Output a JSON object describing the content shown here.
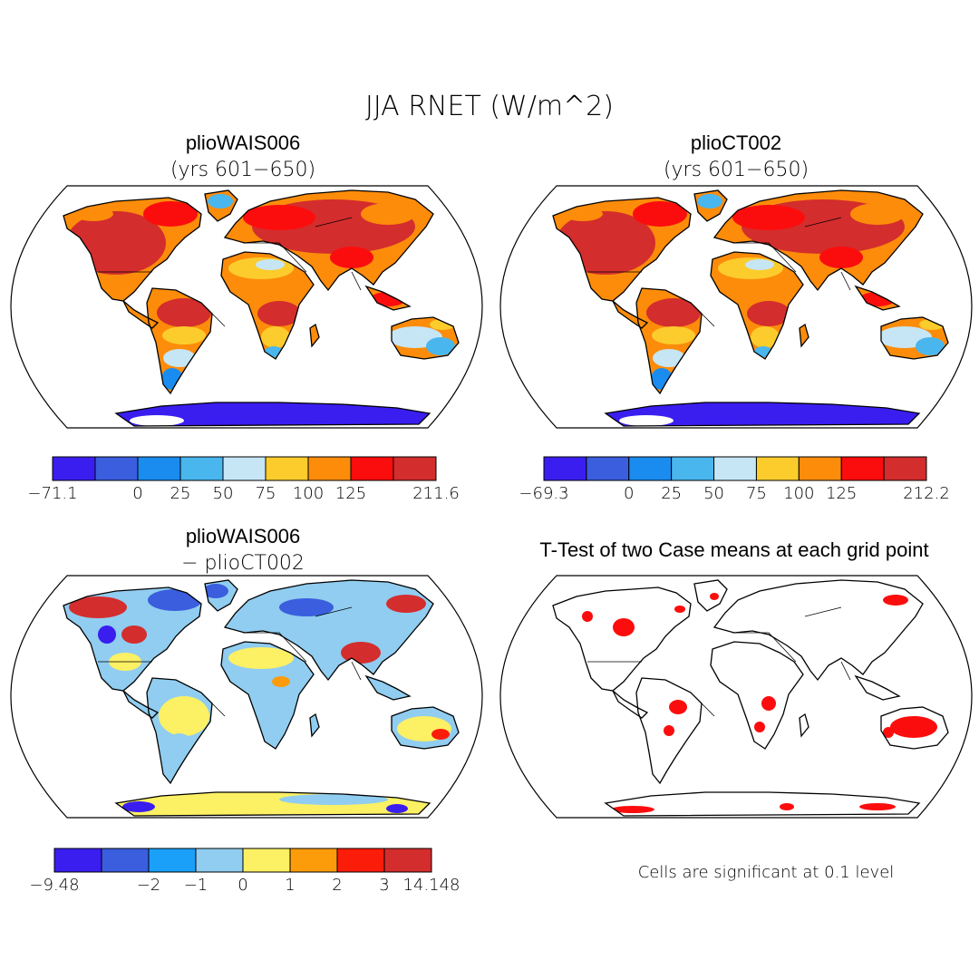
{
  "figure": {
    "title": "JJA RNET (W/m^2)",
    "note": "Cells are significant at 0.1 level"
  },
  "panels": [
    {
      "id": "case1",
      "title": "plioWAIS006",
      "subtitle": "(yrs 601−650)",
      "colorbar": {
        "colors": [
          "#3a1ef0",
          "#3a5ede",
          "#1a8cf0",
          "#4ab6ee",
          "#c6e6f6",
          "#fccc2c",
          "#fc8c0a",
          "#fc0d0d",
          "#d42d2d"
        ],
        "labels": [
          "−71.1",
          "0",
          "25",
          "50",
          "75",
          "100",
          "125",
          "211.6"
        ],
        "label_edges": [
          0,
          2,
          3,
          4,
          5,
          6,
          7,
          9
        ]
      }
    },
    {
      "id": "case2",
      "title": "plioCT002",
      "subtitle": "(yrs 601−650)",
      "colorbar": {
        "colors": [
          "#3a1ef0",
          "#3a5ede",
          "#1a8cf0",
          "#4ab6ee",
          "#c6e6f6",
          "#fccc2c",
          "#fc8c0a",
          "#fc0d0d",
          "#d42d2d"
        ],
        "labels": [
          "−69.3",
          "0",
          "25",
          "50",
          "75",
          "100",
          "125",
          "212.2"
        ],
        "label_edges": [
          0,
          2,
          3,
          4,
          5,
          6,
          7,
          9
        ]
      }
    },
    {
      "id": "diff",
      "title": "plioWAIS006",
      "subtitle": "− plioCT002",
      "colorbar": {
        "colors": [
          "#3a1ef0",
          "#3a5ede",
          "#1aa0f8",
          "#90cdf0",
          "#fcf064",
          "#fc9c0a",
          "#fc1c0a",
          "#d42d2d"
        ],
        "labels": [
          "−9.48",
          "−2",
          "−1",
          "0",
          "1",
          "2",
          "3",
          "14.148"
        ],
        "label_edges": [
          0,
          2,
          3,
          4,
          5,
          6,
          7,
          8
        ]
      }
    },
    {
      "id": "ttest",
      "title": "T-Test of two Case means at each grid point",
      "subtitle": "",
      "colorbar": null
    }
  ]
}
